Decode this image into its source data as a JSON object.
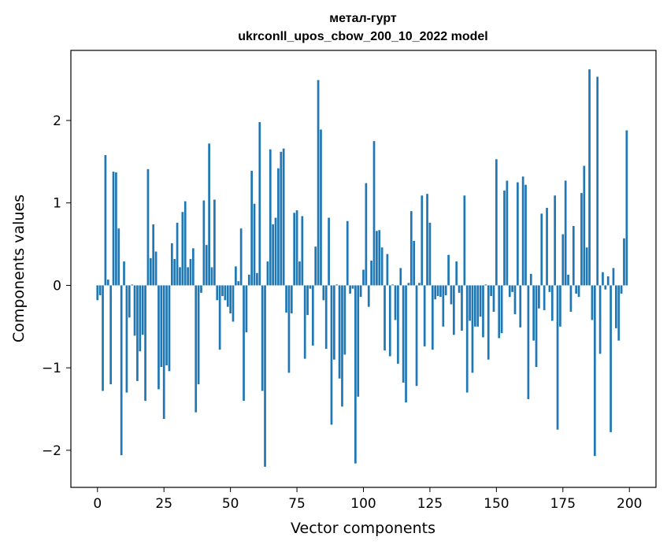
{
  "chart_data": {
    "type": "bar",
    "title": "метал-гурт",
    "subtitle": "ukrconll_upos_cbow_200_10_2022 model",
    "xlabel": "Vector components",
    "ylabel": "Components values",
    "xlim": [
      -10,
      210
    ],
    "ylim": [
      -2.45,
      2.85
    ],
    "xticks": [
      0,
      25,
      50,
      75,
      100,
      125,
      150,
      175,
      200
    ],
    "yticks": [
      -2,
      -1,
      0,
      1,
      2
    ],
    "ytick_labels": [
      "−2",
      "−1",
      "0",
      "1",
      "2"
    ],
    "bar_color": "#1f77b4",
    "grid": false,
    "values": [
      -0.18,
      -0.12,
      -1.28,
      1.58,
      0.07,
      -1.2,
      1.38,
      1.37,
      0.69,
      -2.06,
      0.29,
      -1.3,
      -0.39,
      0.01,
      -0.61,
      -1.16,
      -0.8,
      -0.6,
      -1.4,
      1.41,
      0.33,
      0.74,
      0.41,
      -1.26,
      -0.99,
      -1.62,
      -0.97,
      -1.04,
      0.51,
      0.32,
      0.76,
      0.22,
      0.89,
      1.02,
      0.22,
      0.32,
      0.45,
      -1.54,
      -1.2,
      -0.09,
      1.03,
      0.49,
      1.72,
      0.22,
      1.04,
      -0.18,
      -0.78,
      -0.13,
      -0.18,
      -0.26,
      -0.34,
      -0.44,
      0.23,
      0.05,
      0.69,
      -1.4,
      -0.57,
      0.13,
      1.39,
      0.99,
      0.15,
      1.98,
      -1.28,
      -2.2,
      0.29,
      1.65,
      0.74,
      0.82,
      1.42,
      1.62,
      1.66,
      -0.33,
      -1.06,
      -0.34,
      0.88,
      0.91,
      0.29,
      0.84,
      -0.89,
      -0.36,
      -0.04,
      -0.73,
      0.47,
      2.49,
      1.89,
      -0.18,
      -0.77,
      0.82,
      -1.69,
      -0.9,
      0.01,
      -1.13,
      -1.47,
      -0.84,
      0.78,
      -0.1,
      -0.04,
      -2.16,
      -1.35,
      -0.14,
      0.19,
      1.24,
      -0.26,
      0.3,
      1.75,
      0.66,
      0.67,
      0.46,
      -0.79,
      0.38,
      -0.86,
      0.01,
      -0.42,
      -0.95,
      0.21,
      -1.18,
      -1.42,
      0.03,
      0.9,
      0.54,
      -1.22,
      0.03,
      1.09,
      -0.74,
      1.11,
      0.76,
      -0.78,
      -0.17,
      -0.13,
      -0.14,
      -0.5,
      -0.12,
      0.37,
      -0.23,
      -0.6,
      0.29,
      -0.09,
      -0.55,
      1.09,
      -1.3,
      -0.43,
      -1.06,
      -0.5,
      -0.5,
      -0.38,
      -0.63,
      0.01,
      -0.9,
      -0.13,
      -0.32,
      1.53,
      -0.64,
      -0.58,
      1.15,
      1.27,
      -0.14,
      -0.08,
      -0.35,
      1.25,
      -0.51,
      1.32,
      1.22,
      -1.38,
      0.14,
      -0.67,
      -0.99,
      -0.28,
      0.87,
      -0.3,
      0.94,
      -0.08,
      -0.43,
      1.09,
      -1.75,
      -0.5,
      0.62,
      1.27,
      0.13,
      -0.32,
      0.72,
      -0.1,
      -0.14,
      1.12,
      1.45,
      0.46,
      2.62,
      -0.42,
      -2.07,
      2.53,
      -0.83,
      0.16,
      -0.05,
      0.11,
      -1.78,
      0.21,
      -0.52,
      -0.67,
      -0.1,
      0.57,
      1.88
    ]
  }
}
